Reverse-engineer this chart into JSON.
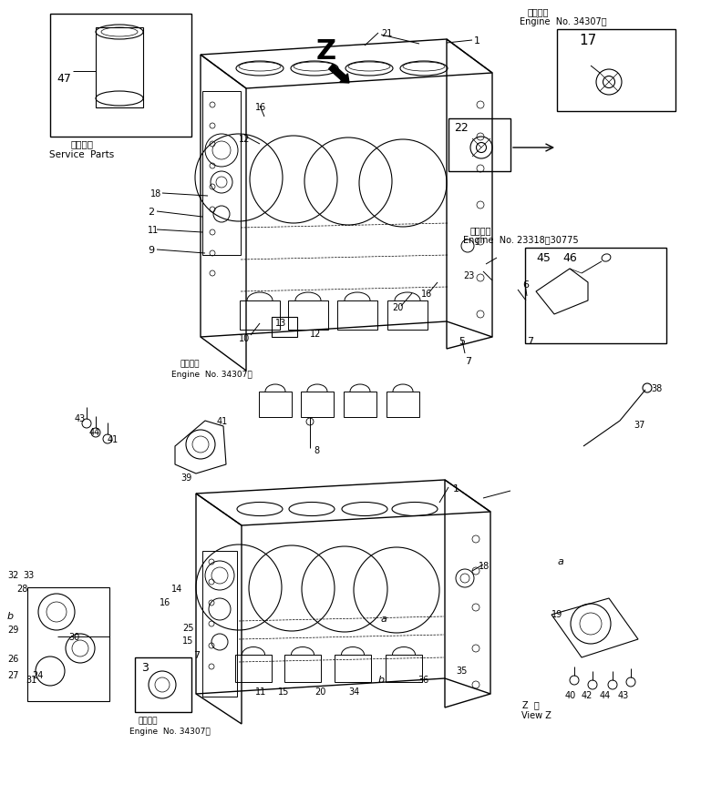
{
  "bg_color": "#ffffff",
  "figsize": [
    7.69,
    8.72
  ],
  "dpi": 100,
  "labels": {
    "top_right_1": "適用号機",
    "top_right_2": "Engine  No. 34307～",
    "mid_right_1": "適用号機",
    "mid_right_2": "Engine  No. 23318～30775",
    "bottom_mid_1": "適用号機",
    "bottom_mid_2": "Engine  No. 34307～",
    "service_parts_jp": "補給専用",
    "service_parts_en": "Service  Parts",
    "z_view_jp": "Z  視",
    "view_z_en": "View Z"
  }
}
